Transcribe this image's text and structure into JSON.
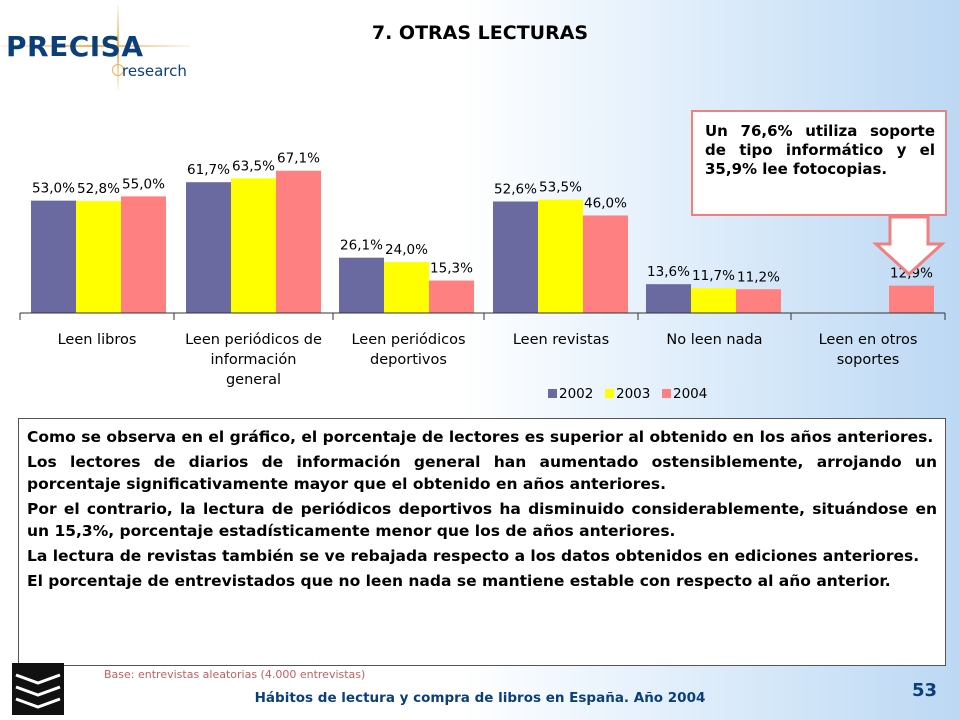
{
  "logo": {
    "name": "PRECISA",
    "sub": "research"
  },
  "slide_title": "7. OTRAS LECTURAS",
  "callout": "Un 76,6% utiliza soporte de tipo informático y el 35,9% lee fotocopias.",
  "colors": {
    "s2002": "#6a6aa0",
    "s2003": "#ffff00",
    "s2004": "#ff8080",
    "arrow": "#f08080",
    "accent": "#0b3f7a"
  },
  "chart_data": {
    "type": "bar",
    "categories": [
      "Leen libros",
      "Leen periódicos de información general",
      "Leen periódicos deportivos",
      "Leen revistas",
      "No leen nada",
      "Leen en otros soportes"
    ],
    "category_lines": [
      [
        "Leen libros"
      ],
      [
        "Leen periódicos de",
        "información",
        "general"
      ],
      [
        "Leen periódicos",
        "deportivos"
      ],
      [
        "Leen revistas"
      ],
      [
        "No leen nada"
      ],
      [
        "Leen en otros",
        "soportes"
      ]
    ],
    "series": [
      {
        "name": "2002",
        "values": [
          53.0,
          61.7,
          26.1,
          52.6,
          13.6,
          null
        ],
        "labels": [
          "53,0%",
          "61,7%",
          "26,1%",
          "52,6%",
          "13,6%",
          ""
        ]
      },
      {
        "name": "2003",
        "values": [
          52.8,
          63.5,
          24.0,
          53.5,
          11.7,
          null
        ],
        "labels": [
          "52,8%",
          "63,5%",
          "24,0%",
          "53,5%",
          "11,7%",
          ""
        ]
      },
      {
        "name": "2004",
        "values": [
          55.0,
          67.1,
          15.3,
          46.0,
          11.2,
          12.9
        ],
        "labels": [
          "55,0%",
          "67,1%",
          "15,3%",
          "46,0%",
          "11,2%",
          "12,9%"
        ]
      }
    ],
    "ylim": [
      0,
      80
    ],
    "legend_position": "bottom-center"
  },
  "body_paragraphs": [
    "Como se observa en el gráfico, el porcentaje de lectores es superior al obtenido en los años anteriores.",
    "Los lectores de diarios de información general han aumentado ostensiblemente, arrojando un porcentaje significativamente mayor que el obtenido en años anteriores.",
    "Por el contrario, la lectura de periódicos deportivos ha disminuido considerablemente, situándose en un 15,3%, porcentaje estadísticamente menor que los de años anteriores.",
    "La lectura de revistas también se ve rebajada respecto a los datos obtenidos en ediciones anteriores.",
    "El porcentaje de entrevistados que no leen nada se mantiene estable con respecto al año anterior."
  ],
  "base_note": "Base: entrevistas aleatorias (4.000 entrevistas)",
  "footer": "Hábitos de lectura y compra de libros en España. Año 2004",
  "page_number": "53"
}
